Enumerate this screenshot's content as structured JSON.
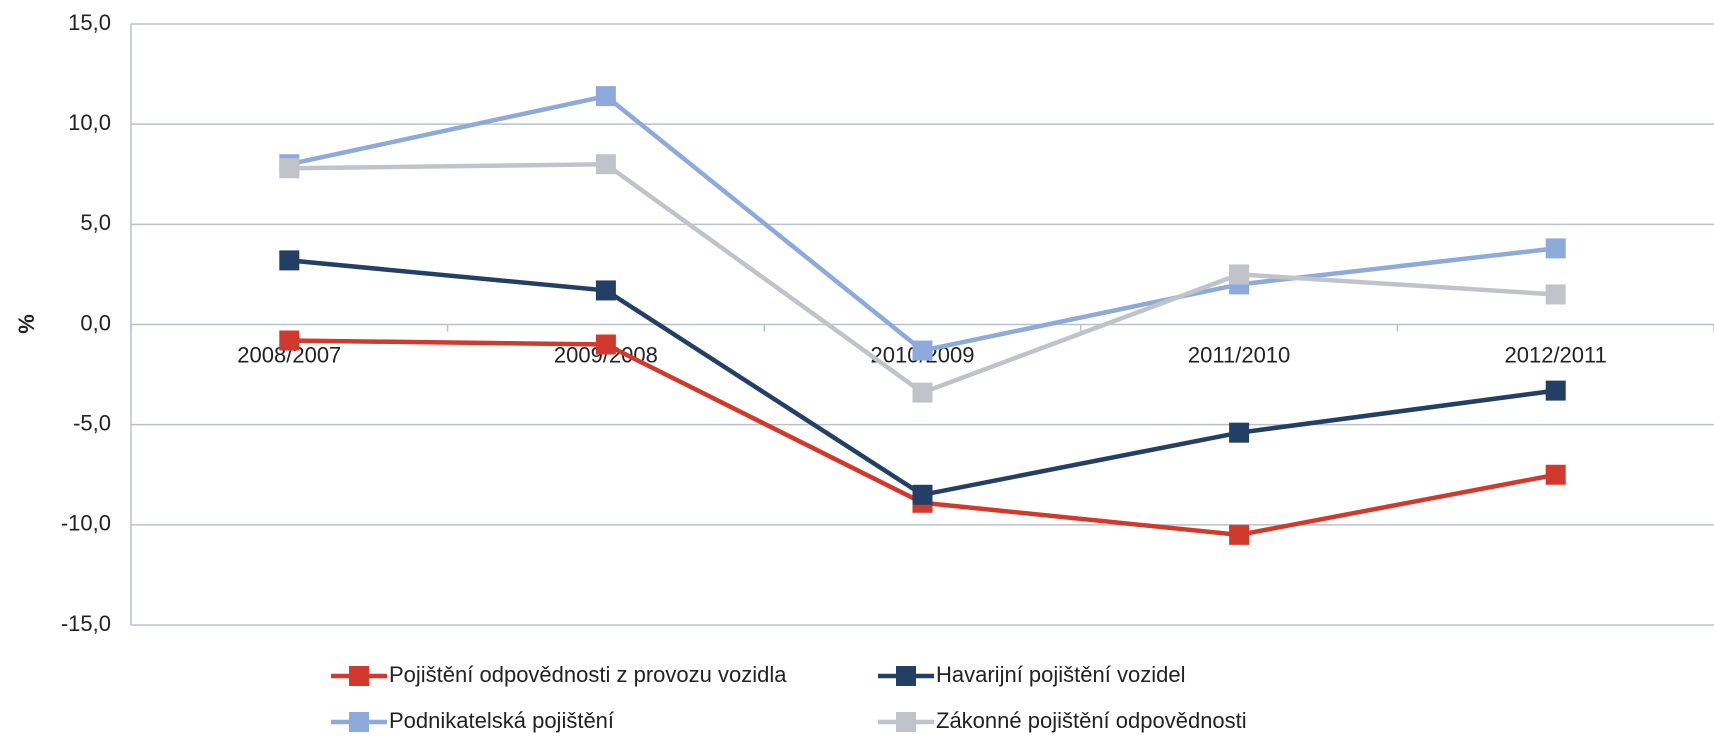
{
  "chart_data": {
    "type": "line",
    "y_label": "%",
    "categories": [
      "2008/2007",
      "2009/2008",
      "2010/2009",
      "2011/2010",
      "2012/2011"
    ],
    "series": [
      {
        "name": "Pojištění odpovědnosti z provozu vozidla",
        "color": "#d0392b",
        "values": [
          -0.8,
          -1.0,
          -8.9,
          -10.5,
          -7.5
        ]
      },
      {
        "name": "Havarijní pojištění vozidel",
        "color": "#243f66",
        "values": [
          3.2,
          1.7,
          -8.5,
          -5.4,
          -3.3
        ]
      },
      {
        "name": "Podnikatelská pojištění",
        "color": "#8eaadb",
        "values": [
          8.0,
          11.4,
          -1.3,
          2.0,
          3.8
        ]
      },
      {
        "name": "Zákonné pojištění odpovědnosti",
        "color": "#c0c4ca",
        "values": [
          7.8,
          8.0,
          -3.4,
          2.5,
          1.5
        ]
      }
    ],
    "ylim": [
      -15,
      15
    ],
    "yticks": [
      {
        "value": -15,
        "label": "-15,0"
      },
      {
        "value": -10,
        "label": "-10,0"
      },
      {
        "value": -5,
        "label": "-5,0"
      },
      {
        "value": 0,
        "label": "0,0"
      },
      {
        "value": 5,
        "label": "5,0"
      },
      {
        "value": 10,
        "label": "10,0"
      },
      {
        "value": 15,
        "label": "15,0"
      }
    ],
    "grid": true
  }
}
